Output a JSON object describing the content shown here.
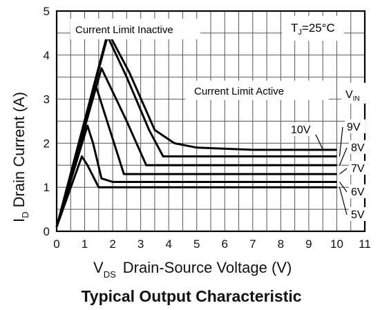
{
  "chart_data": {
    "type": "line",
    "title": "Typical Output Characteristic",
    "xlabel": {
      "main": "V",
      "sub": "DS",
      "text": "Drain-Source Voltage (V)"
    },
    "ylabel": {
      "main": "I",
      "sub": "D",
      "text": "Drain Current (A)"
    },
    "xlim": [
      0,
      11
    ],
    "ylim": [
      0,
      5
    ],
    "xticks": [
      "0",
      "1",
      "2",
      "3",
      "4",
      "5",
      "6",
      "7",
      "8",
      "9",
      "10",
      "11"
    ],
    "yticks": [
      "0",
      "1",
      "2",
      "3",
      "4",
      "5"
    ],
    "grid": true,
    "legend_title": {
      "main": "V",
      "sub": "IN"
    },
    "annotations": {
      "inactive": "Current Limit Inactive",
      "active": "Current Limit Active",
      "tj_main": "T",
      "tj_sub": "J",
      "tj_value": "=25°C"
    },
    "series": [
      {
        "name": "5V",
        "points": [
          [
            0,
            0.1
          ],
          [
            0.9,
            1.7
          ],
          [
            1.1,
            1.5
          ],
          [
            1.5,
            1.0
          ],
          [
            10,
            1.0
          ]
        ]
      },
      {
        "name": "6V",
        "points": [
          [
            0,
            0.1
          ],
          [
            1.1,
            2.4
          ],
          [
            1.3,
            2.0
          ],
          [
            1.6,
            1.2
          ],
          [
            2,
            1.12
          ],
          [
            10,
            1.12
          ]
        ]
      },
      {
        "name": "7V",
        "points": [
          [
            0,
            0.1
          ],
          [
            1.4,
            3.3
          ],
          [
            2.4,
            1.3
          ],
          [
            10,
            1.3
          ]
        ]
      },
      {
        "name": "8V",
        "points": [
          [
            0,
            0.1
          ],
          [
            1.6,
            3.7
          ],
          [
            2.5,
            2.5
          ],
          [
            3.2,
            1.5
          ],
          [
            10,
            1.5
          ]
        ]
      },
      {
        "name": "9V",
        "points": [
          [
            0,
            0.1
          ],
          [
            1.8,
            4.45
          ],
          [
            2.5,
            3.5
          ],
          [
            3.3,
            2.3
          ],
          [
            3.8,
            1.7
          ],
          [
            10,
            1.7
          ]
        ]
      },
      {
        "name": "10V",
        "points": [
          [
            0,
            0.1
          ],
          [
            1.85,
            4.5
          ],
          [
            2.6,
            3.6
          ],
          [
            3.5,
            2.3
          ],
          [
            4.2,
            2.0
          ],
          [
            5,
            1.9
          ],
          [
            7,
            1.85
          ],
          [
            10,
            1.85
          ]
        ]
      }
    ]
  }
}
